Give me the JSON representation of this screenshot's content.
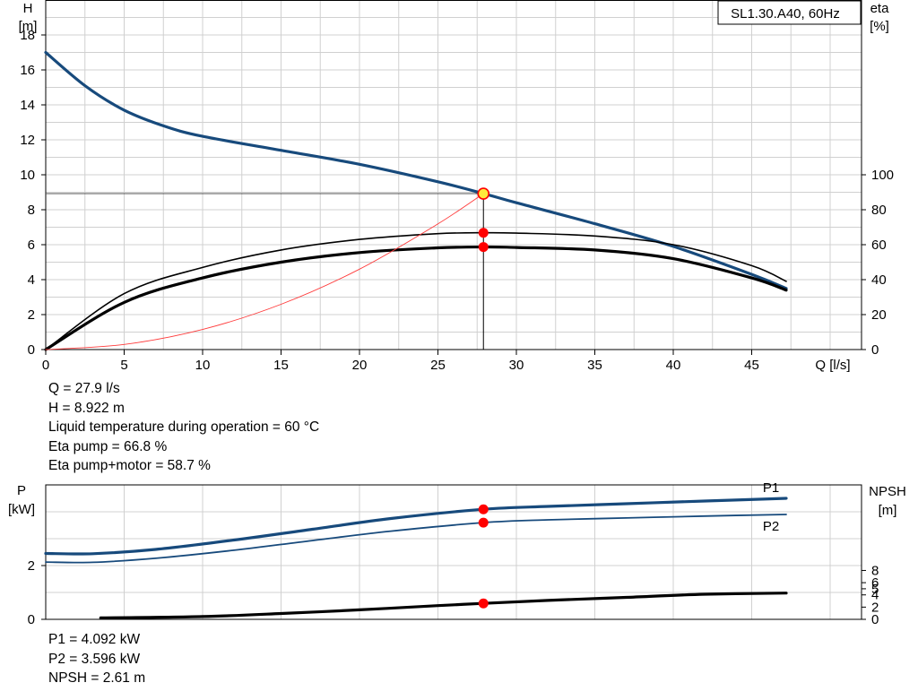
{
  "chart_data": [
    {
      "type": "line",
      "title": "SL1.30.A40, 60Hz",
      "xlabel": "Q [l/s]",
      "ylabel": [
        "H",
        "[m]"
      ],
      "ylabel_right": [
        "eta",
        "[%]"
      ],
      "xlim": [
        0,
        52
      ],
      "ylim": [
        0,
        20
      ],
      "ylim_right": [
        0,
        200
      ],
      "x_ticks": [
        0,
        5,
        10,
        15,
        20,
        25,
        30,
        35,
        40,
        45
      ],
      "y_ticks": [
        0,
        2,
        4,
        6,
        8,
        10,
        12,
        14,
        16,
        18
      ],
      "y_ticks_right": [
        0,
        20,
        40,
        60,
        80,
        100
      ],
      "grid": true,
      "duty_point": {
        "q": 27.9,
        "h": 8.922
      },
      "series": [
        {
          "id": "h_curve",
          "axis": "left",
          "color": "#174a7c",
          "x": [
            0,
            2.5,
            5,
            7.5,
            10,
            15,
            20,
            25,
            28,
            30,
            35,
            40,
            45,
            47.2
          ],
          "y": [
            17.0,
            15.1,
            13.7,
            12.8,
            12.2,
            11.4,
            10.6,
            9.6,
            8.9,
            8.4,
            7.2,
            5.9,
            4.3,
            3.5
          ]
        },
        {
          "id": "eta_pump",
          "axis": "right",
          "color": "#000000",
          "x": [
            0,
            5,
            10,
            15,
            20,
            25,
            28,
            30,
            35,
            40,
            45,
            47.2
          ],
          "y": [
            0,
            32,
            47,
            57,
            63,
            66.3,
            66.8,
            66.6,
            65,
            60,
            48,
            39
          ]
        },
        {
          "id": "eta_pump_motor",
          "axis": "right",
          "color": "#000000",
          "x": [
            0,
            5,
            10,
            15,
            20,
            25,
            28,
            30,
            35,
            40,
            45,
            47.2
          ],
          "y": [
            0,
            27,
            41,
            50,
            55.5,
            58.2,
            58.7,
            58.4,
            57,
            52,
            41,
            34
          ]
        },
        {
          "id": "system_curve",
          "axis": "left",
          "color": "#ff3b3b",
          "x": [
            0,
            5,
            10,
            15,
            20,
            25,
            27.9
          ],
          "y": [
            0,
            0.29,
            1.15,
            2.59,
            4.6,
            7.19,
            8.922
          ]
        }
      ]
    },
    {
      "type": "line",
      "ylabel": [
        "P",
        "[kW]"
      ],
      "ylabel_right": [
        "NPSH",
        "[m]"
      ],
      "xlim": [
        0,
        52
      ],
      "ylim": [
        0,
        5
      ],
      "ylim_right": [
        0,
        22
      ],
      "y_ticks": [
        0,
        2
      ],
      "y_ticks_right": [
        0,
        2,
        4,
        5,
        6,
        8
      ],
      "grid": true,
      "series": [
        {
          "id": "p1",
          "name": "P1",
          "axis": "left",
          "color": "#174a7c",
          "x": [
            0,
            3,
            7,
            12,
            17,
            22,
            27.9,
            32,
            37,
            42,
            47.2
          ],
          "y": [
            2.45,
            2.44,
            2.6,
            2.95,
            3.35,
            3.75,
            4.092,
            4.2,
            4.3,
            4.4,
            4.5
          ]
        },
        {
          "id": "p2",
          "name": "P2",
          "axis": "left",
          "color": "#174a7c",
          "x": [
            0,
            3,
            7,
            12,
            17,
            22,
            27.9,
            32,
            37,
            42,
            47.2
          ],
          "y": [
            2.13,
            2.12,
            2.27,
            2.57,
            2.93,
            3.28,
            3.596,
            3.7,
            3.77,
            3.84,
            3.9
          ]
        },
        {
          "id": "npsh",
          "axis": "right",
          "color": "#000000",
          "x": [
            3.5,
            10,
            15,
            20,
            25,
            27.9,
            32,
            37,
            42,
            47.2
          ],
          "y": [
            0.23,
            0.45,
            0.95,
            1.55,
            2.25,
            2.61,
            3.1,
            3.6,
            4.1,
            4.3
          ]
        }
      ],
      "markers": [
        {
          "x": 27.9,
          "series": "p1",
          "y": 4.092
        },
        {
          "x": 27.9,
          "series": "p2",
          "y": 3.596
        },
        {
          "x": 27.9,
          "series": "npsh",
          "y": 2.61
        }
      ]
    }
  ],
  "readout_top": [
    "Q = 27.9 l/s",
    "H = 8.922 m",
    "Liquid temperature during operation = 60 °C",
    "Eta pump = 66.8 %",
    "Eta pump+motor = 58.7 %"
  ],
  "readout_bottom": [
    "P1 = 4.092 kW",
    "P2 = 3.596 kW",
    "NPSH = 2.61 m"
  ],
  "colors": {
    "grid": "#d0d0d0",
    "h_curve": "#174a7c",
    "system_curve": "#ff3b3b",
    "marker": "#ff0000",
    "duty_fill": "#ffeb3b"
  }
}
